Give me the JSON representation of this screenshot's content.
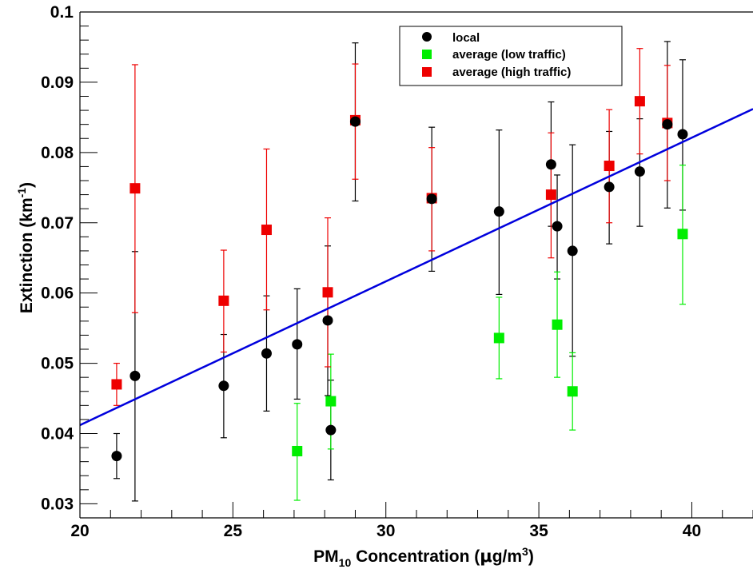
{
  "chart_data": {
    "type": "scatter",
    "title": "",
    "xlabel": {
      "prefix": "PM",
      "sub": "10",
      "suffix": " Concentration (",
      "mu": "μ",
      "unit": "g/m",
      "sup": "3",
      "close": ")"
    },
    "ylabel": {
      "prefix": "Extinction (km",
      "sup": "-1",
      "close": ")"
    },
    "xlim": [
      20,
      42
    ],
    "ylim": [
      0.028,
      0.1
    ],
    "x_ticks": [
      20,
      25,
      30,
      35,
      40
    ],
    "x_tick_labels": [
      "20",
      "25",
      "30",
      "35",
      "40"
    ],
    "y_ticks": [
      0.03,
      0.04,
      0.05,
      0.06,
      0.07,
      0.08,
      0.09,
      0.1
    ],
    "y_tick_labels": [
      "0.03",
      "0.04",
      "0.05",
      "0.06",
      "0.07",
      "0.08",
      "0.09",
      "0.1"
    ],
    "grid": false,
    "legend_position": "top-right",
    "series": [
      {
        "name": "local",
        "color": "#000000",
        "marker": "circle",
        "points": [
          {
            "x": 21.2,
            "y": 0.0368,
            "lo": 0.0336,
            "hi": 0.04
          },
          {
            "x": 21.8,
            "y": 0.0482,
            "lo": 0.0304,
            "hi": 0.0659
          },
          {
            "x": 24.7,
            "y": 0.0468,
            "lo": 0.0394,
            "hi": 0.0541
          },
          {
            "x": 26.1,
            "y": 0.0514,
            "lo": 0.0432,
            "hi": 0.0596
          },
          {
            "x": 27.1,
            "y": 0.0527,
            "lo": 0.0449,
            "hi": 0.0606
          },
          {
            "x": 28.1,
            "y": 0.0561,
            "lo": 0.0454,
            "hi": 0.0667
          },
          {
            "x": 28.2,
            "y": 0.0405,
            "lo": 0.0334,
            "hi": 0.0476
          },
          {
            "x": 29.0,
            "y": 0.0844,
            "lo": 0.0731,
            "hi": 0.0956
          },
          {
            "x": 31.5,
            "y": 0.0734,
            "lo": 0.0631,
            "hi": 0.0836
          },
          {
            "x": 33.7,
            "y": 0.0716,
            "lo": 0.0598,
            "hi": 0.0832
          },
          {
            "x": 35.4,
            "y": 0.0783,
            "lo": 0.0695,
            "hi": 0.0872
          },
          {
            "x": 35.6,
            "y": 0.0695,
            "lo": 0.062,
            "hi": 0.0768
          },
          {
            "x": 36.1,
            "y": 0.066,
            "lo": 0.051,
            "hi": 0.0811
          },
          {
            "x": 37.3,
            "y": 0.0751,
            "lo": 0.067,
            "hi": 0.083
          },
          {
            "x": 38.3,
            "y": 0.0773,
            "lo": 0.0695,
            "hi": 0.0848
          },
          {
            "x": 39.2,
            "y": 0.084,
            "lo": 0.0721,
            "hi": 0.0958
          },
          {
            "x": 39.7,
            "y": 0.0826,
            "lo": 0.0718,
            "hi": 0.0932
          }
        ]
      },
      {
        "name": "average (low traffic)",
        "color": "#00ee00",
        "marker": "square",
        "points": [
          {
            "x": 27.1,
            "y": 0.0375,
            "lo": 0.0305,
            "hi": 0.0443
          },
          {
            "x": 28.2,
            "y": 0.0446,
            "lo": 0.0378,
            "hi": 0.0513
          },
          {
            "x": 33.7,
            "y": 0.0536,
            "lo": 0.0478,
            "hi": 0.0594
          },
          {
            "x": 35.6,
            "y": 0.0555,
            "lo": 0.048,
            "hi": 0.063
          },
          {
            "x": 36.1,
            "y": 0.046,
            "lo": 0.0405,
            "hi": 0.0515
          },
          {
            "x": 39.7,
            "y": 0.0684,
            "lo": 0.0584,
            "hi": 0.0782
          }
        ]
      },
      {
        "name": "average (high traffic)",
        "color": "#ee0000",
        "marker": "square",
        "points": [
          {
            "x": 21.2,
            "y": 0.047,
            "lo": 0.044,
            "hi": 0.05
          },
          {
            "x": 21.8,
            "y": 0.0749,
            "lo": 0.0572,
            "hi": 0.0925
          },
          {
            "x": 24.7,
            "y": 0.0589,
            "lo": 0.0516,
            "hi": 0.0661
          },
          {
            "x": 26.1,
            "y": 0.069,
            "lo": 0.0576,
            "hi": 0.0805
          },
          {
            "x": 28.1,
            "y": 0.0601,
            "lo": 0.0495,
            "hi": 0.0707
          },
          {
            "x": 29.0,
            "y": 0.0846,
            "lo": 0.0762,
            "hi": 0.0926
          },
          {
            "x": 31.5,
            "y": 0.0735,
            "lo": 0.066,
            "hi": 0.0807
          },
          {
            "x": 35.4,
            "y": 0.074,
            "lo": 0.065,
            "hi": 0.0828
          },
          {
            "x": 37.3,
            "y": 0.0781,
            "lo": 0.07,
            "hi": 0.0861
          },
          {
            "x": 38.3,
            "y": 0.0873,
            "lo": 0.0798,
            "hi": 0.0948
          },
          {
            "x": 39.2,
            "y": 0.0842,
            "lo": 0.076,
            "hi": 0.0924
          }
        ]
      }
    ],
    "fit_line": {
      "color": "#0000dd",
      "x": [
        20,
        42
      ],
      "y": [
        0.0412,
        0.0862
      ]
    }
  }
}
